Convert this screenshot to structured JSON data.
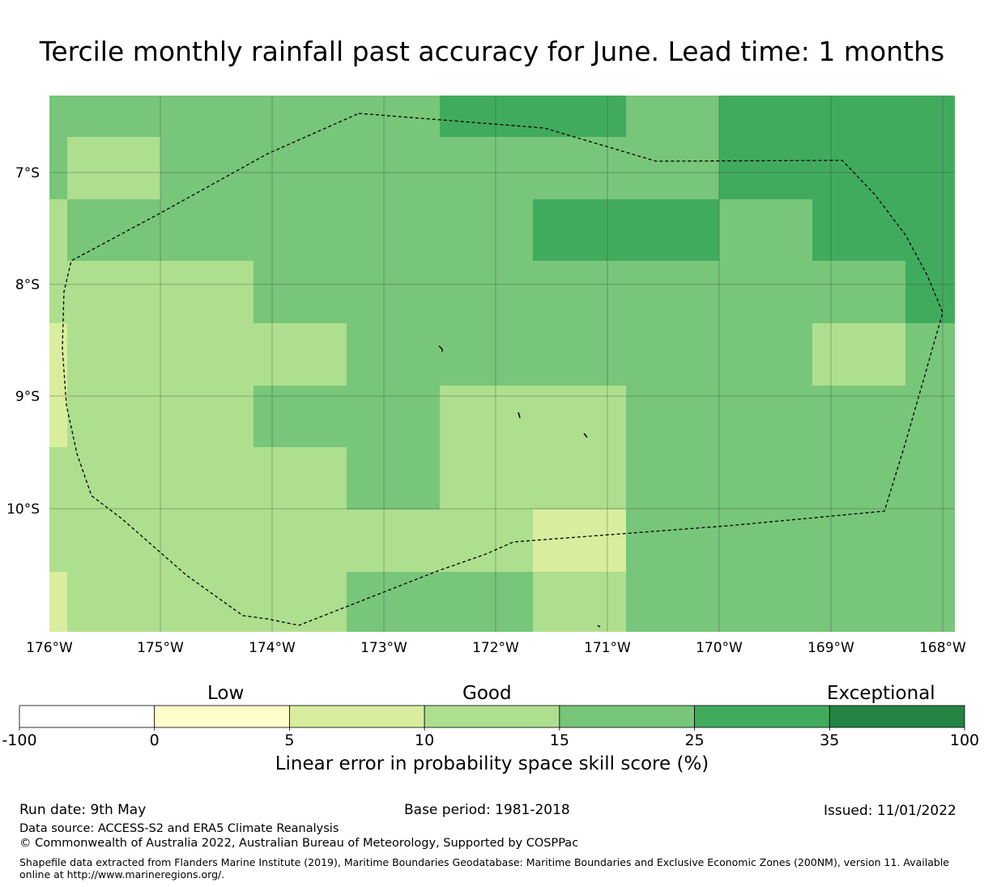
{
  "title": "Tercile monthly rainfall past accuracy for June. Lead time: 1 months",
  "map": {
    "x_ticks": [
      "176°W",
      "175°W",
      "174°W",
      "173°W",
      "172°W",
      "171°W",
      "170°W",
      "169°W",
      "168°W"
    ],
    "y_ticks": [
      "7°S",
      "8°S",
      "9°S",
      "10°S"
    ],
    "lon_range": [
      -176,
      -167.9
    ],
    "lat_range": [
      -6.3,
      -11.1
    ],
    "grid": true,
    "eez_boundary": "dashed",
    "colors": {
      "c0": "#fffdcc",
      "c1": "#d8ee9e",
      "c2": "#addf8e",
      "c3": "#78c679",
      "c4": "#41ab5d",
      "c5": "#238443",
      "boundary": "#000000",
      "grid": "#3a3a3a"
    },
    "cell_values_class": [
      "skill class per cell, rows top->bottom, cols left->right (col widths irregular as shown)"
    ]
  },
  "colorbar": {
    "categories": [
      "Low",
      "Good",
      "Exceptional"
    ],
    "ticks": [
      "-100",
      "0",
      "5",
      "10",
      "15",
      "25",
      "35",
      "100"
    ],
    "colors": [
      "#ffffff",
      "#fffdcc",
      "#d8ee9e",
      "#addf8e",
      "#78c679",
      "#41ab5d",
      "#238443"
    ],
    "label": "Linear error in probability space skill score (%)"
  },
  "footer": {
    "run_date": "Run date: 9th May",
    "base_period": "Base period: 1981-2018",
    "issued": "Issued: 11/01/2022",
    "data_source": "Data source: ACCESS-S2 and ERA5 Climate Reanalysis",
    "copyright": "© Commonwealth of Australia 2022, Australian Bureau of Meteorology, Supported by COSPPac",
    "shapefile": "Shapefile data extracted from Flanders Marine Institute (2019), Maritime Boundaries Geodatabase: Maritime Boundaries and Exclusive Economic Zones (200NM), version 11. Available online at http://www.marineregions.org/."
  }
}
